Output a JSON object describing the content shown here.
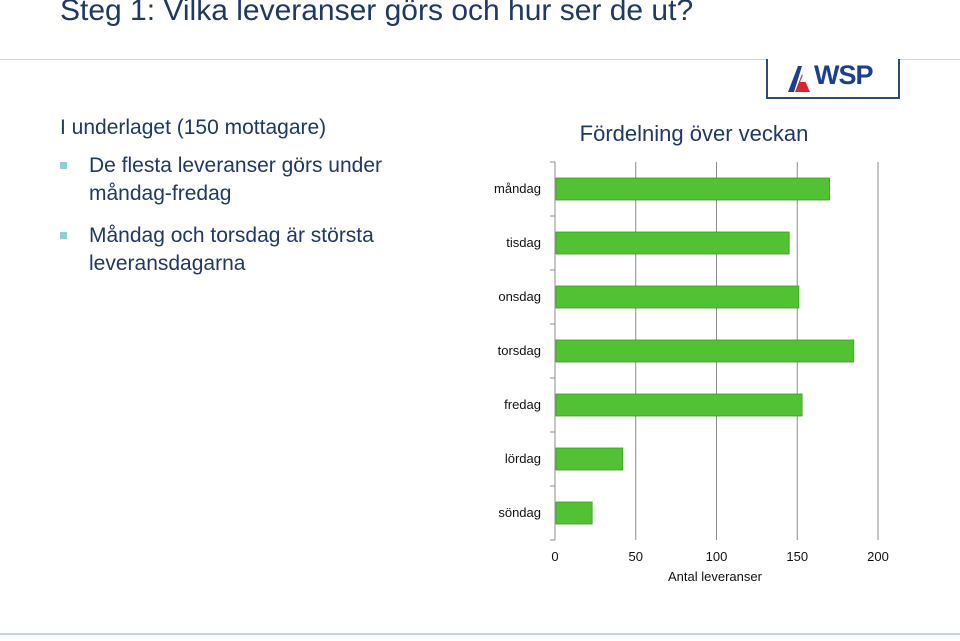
{
  "slide": {
    "title": "Steg 1: Vilka leveranser görs och hur ser de ut?",
    "intro": "I underlaget (150 mottagare)",
    "bullets": [
      "De flesta leveranser görs under måndag-fredag",
      "Måndag och torsdag är största leveransdagarna"
    ]
  },
  "logo": {
    "text": "WSP",
    "icon": "wsp-logo-mark",
    "color": "#1d3f8f"
  },
  "colors": {
    "bar": "#52c234",
    "title": "#1f3864",
    "accent": "#8fd0cf"
  },
  "chart_data": {
    "type": "bar",
    "orientation": "horizontal",
    "title": "Fördelning över veckan",
    "categories": [
      "måndag",
      "tisdag",
      "onsdag",
      "torsdag",
      "fredag",
      "lördag",
      "söndag"
    ],
    "values": [
      170,
      145,
      151,
      185,
      153,
      42,
      23
    ],
    "xlabel": "Antal leveranser",
    "ylabel": "",
    "xlim": [
      0,
      200
    ],
    "xticks": [
      0,
      50,
      100,
      150,
      200
    ],
    "grid": true
  }
}
